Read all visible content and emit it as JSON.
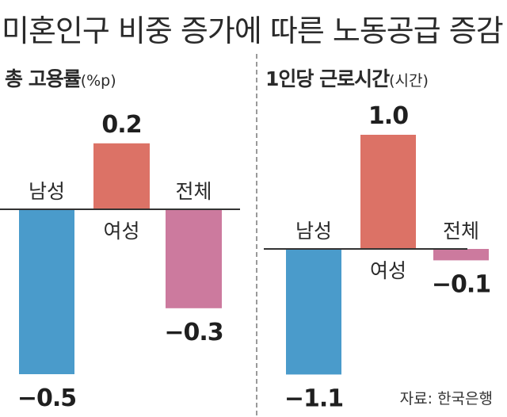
{
  "title": "미혼인구 비중 증가에 따른 노동공급 증감",
  "source": "자료: 한국은행",
  "colors": {
    "male": "#4a9bcb",
    "female": "#dc7266",
    "total": "#cc7a9e",
    "axis": "#333333",
    "divider": "#9a9a9a"
  },
  "chart_data": [
    {
      "type": "bar",
      "title": "총 고용률",
      "unit": "(%p)",
      "categories": [
        "남성",
        "여성",
        "전체"
      ],
      "values": [
        -0.5,
        0.2,
        -0.3
      ],
      "value_labels": [
        "−0.5",
        "0.2",
        "−0.3"
      ],
      "legend": "none",
      "grid": false
    },
    {
      "type": "bar",
      "title": "1인당 근로시간",
      "unit": "(시간)",
      "categories": [
        "남성",
        "여성",
        "전체"
      ],
      "values": [
        -1.1,
        1.0,
        -0.1
      ],
      "value_labels": [
        "−1.1",
        "1.0",
        "−0.1"
      ],
      "legend": "none",
      "grid": false
    }
  ]
}
